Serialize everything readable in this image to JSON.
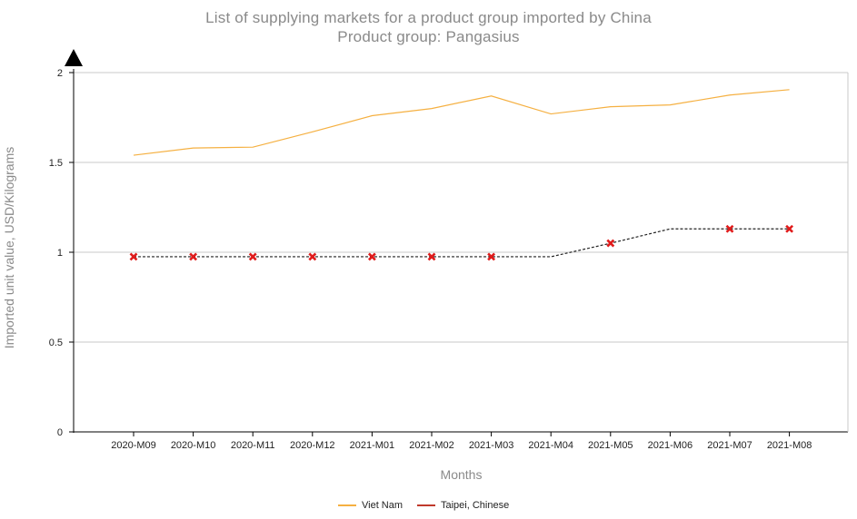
{
  "header": {
    "title_line1": "List of supplying markets for a product group imported by China",
    "title_line2": "Product group: Pangasius"
  },
  "chart_data": {
    "type": "line",
    "title": "List of supplying markets for a product group imported by China",
    "subtitle": "Product group: Pangasius",
    "xlabel": "Months",
    "ylabel": "Imported unit value, USD/Kilograms",
    "categories": [
      "2020-M09",
      "2020-M10",
      "2020-M11",
      "2020-M12",
      "2021-M01",
      "2021-M02",
      "2021-M03",
      "2021-M04",
      "2021-M05",
      "2021-M06",
      "2021-M07",
      "2021-M08"
    ],
    "ylim": [
      0,
      2
    ],
    "yticks": [
      "0",
      "0.5",
      "1",
      "1.5",
      "2"
    ],
    "ytick_values": [
      0,
      0.5,
      1,
      1.5,
      2
    ],
    "grid": "horizontal",
    "legend_position": "bottom",
    "series": [
      {
        "name": "Viet Nam",
        "color": "#f5b041",
        "style": "solid",
        "markers": "none",
        "values": [
          1.54,
          1.58,
          1.585,
          1.67,
          1.76,
          1.8,
          1.87,
          1.77,
          1.81,
          1.82,
          1.875,
          1.905
        ]
      },
      {
        "name": "Taipei, Chinese",
        "color": "#c0392b",
        "line_color": "#222222",
        "marker_color": "#e01b1b",
        "style": "dashed",
        "markers": "x",
        "values": [
          0.975,
          0.975,
          0.975,
          0.975,
          0.975,
          0.975,
          0.975,
          0.975,
          1.05,
          1.13,
          1.13,
          1.13
        ],
        "marker_indices": [
          0,
          1,
          2,
          3,
          4,
          5,
          6,
          8,
          10,
          11
        ]
      }
    ]
  }
}
